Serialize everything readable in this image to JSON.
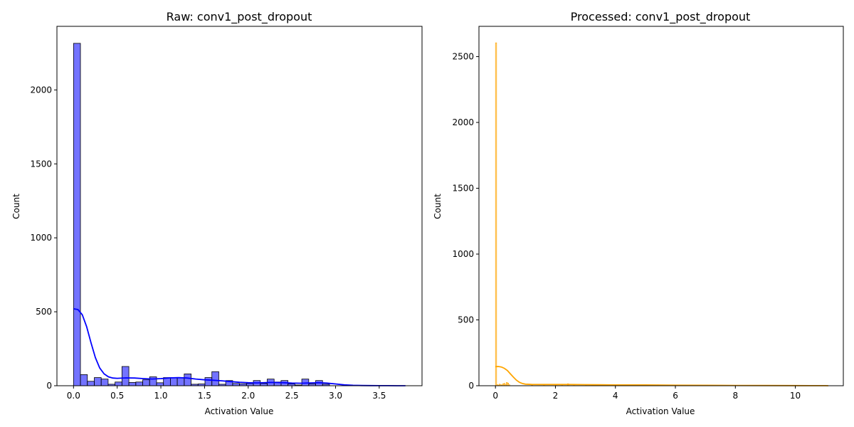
{
  "chart_data": [
    {
      "type": "histogram",
      "title": "Raw: conv1_post_dropout",
      "xlabel": "Activation Value",
      "ylabel": "Count",
      "xlim": [
        -0.19,
        3.99
      ],
      "ylim": [
        0,
        2430
      ],
      "xticks": [
        0.0,
        0.5,
        1.0,
        1.5,
        2.0,
        2.5,
        3.0,
        3.5
      ],
      "xtick_labels": [
        "0.0",
        "0.5",
        "1.0",
        "1.5",
        "2.0",
        "2.5",
        "3.0",
        "3.5"
      ],
      "yticks": [
        0,
        500,
        1000,
        1500,
        2000
      ],
      "ytick_labels": [
        "0",
        "500",
        "1000",
        "1500",
        "2000"
      ],
      "bin_start": 0.0,
      "bin_width": 0.0792,
      "counts": [
        2315,
        75,
        30,
        55,
        45,
        10,
        25,
        130,
        22,
        25,
        40,
        60,
        20,
        55,
        55,
        55,
        80,
        10,
        12,
        55,
        95,
        10,
        35,
        15,
        12,
        15,
        35,
        15,
        45,
        25,
        35,
        12,
        5,
        45,
        12,
        35,
        10
      ],
      "bar_color": "#0000ff",
      "kde": {
        "color": "#0000ff",
        "points": [
          [
            0.0,
            520
          ],
          [
            0.05,
            515
          ],
          [
            0.1,
            480
          ],
          [
            0.15,
            400
          ],
          [
            0.2,
            290
          ],
          [
            0.25,
            190
          ],
          [
            0.3,
            120
          ],
          [
            0.35,
            80
          ],
          [
            0.4,
            60
          ],
          [
            0.45,
            52
          ],
          [
            0.5,
            50
          ],
          [
            0.6,
            53
          ],
          [
            0.7,
            52
          ],
          [
            0.8,
            48
          ],
          [
            0.9,
            45
          ],
          [
            1.0,
            48
          ],
          [
            1.1,
            53
          ],
          [
            1.2,
            55
          ],
          [
            1.3,
            52
          ],
          [
            1.4,
            45
          ],
          [
            1.5,
            40
          ],
          [
            1.6,
            37
          ],
          [
            1.7,
            33
          ],
          [
            1.8,
            28
          ],
          [
            1.9,
            23
          ],
          [
            2.0,
            20
          ],
          [
            2.1,
            19
          ],
          [
            2.2,
            21
          ],
          [
            2.3,
            22
          ],
          [
            2.4,
            20
          ],
          [
            2.5,
            18
          ],
          [
            2.6,
            17
          ],
          [
            2.7,
            19
          ],
          [
            2.8,
            20
          ],
          [
            2.9,
            18
          ],
          [
            3.0,
            12
          ],
          [
            3.1,
            6
          ],
          [
            3.2,
            3
          ],
          [
            3.3,
            1.5
          ],
          [
            3.4,
            1
          ],
          [
            3.5,
            0.5
          ],
          [
            3.6,
            0.3
          ],
          [
            3.7,
            0.2
          ],
          [
            3.8,
            0.1
          ]
        ]
      }
    },
    {
      "type": "histogram",
      "title": "Processed: conv1_post_dropout",
      "xlabel": "Activation Value",
      "ylabel": "Count",
      "xlim": [
        -0.55,
        11.6
      ],
      "ylim": [
        0,
        2730
      ],
      "xticks": [
        0,
        2,
        4,
        6,
        8,
        10
      ],
      "xtick_labels": [
        "0",
        "2",
        "4",
        "6",
        "8",
        "10"
      ],
      "yticks": [
        0,
        500,
        1000,
        1500,
        2000,
        2500
      ],
      "ytick_labels": [
        "0",
        "500",
        "1000",
        "1500",
        "2000",
        "2500"
      ],
      "bin_start": 0.0,
      "bin_width": 0.04,
      "counts_note_free": true,
      "counts": [
        2605,
        8,
        5,
        12,
        8,
        6,
        15,
        18,
        10,
        25,
        20,
        8
      ],
      "tail_bins": [
        [
          1.2,
          6
        ],
        [
          1.6,
          8
        ],
        [
          2.0,
          7
        ],
        [
          2.2,
          12
        ],
        [
          2.4,
          15
        ],
        [
          2.6,
          8
        ],
        [
          3.0,
          6
        ],
        [
          3.6,
          5
        ],
        [
          4.2,
          4
        ],
        [
          5.0,
          5
        ],
        [
          5.4,
          7
        ],
        [
          6.0,
          3
        ],
        [
          7.0,
          2
        ],
        [
          8.0,
          2
        ],
        [
          8.8,
          3
        ],
        [
          10.0,
          1
        ]
      ],
      "bar_color": "#ffa500",
      "kde": {
        "color": "#ffa500",
        "points": [
          [
            0.0,
            145
          ],
          [
            0.1,
            146
          ],
          [
            0.2,
            142
          ],
          [
            0.3,
            132
          ],
          [
            0.4,
            115
          ],
          [
            0.5,
            90
          ],
          [
            0.6,
            65
          ],
          [
            0.7,
            42
          ],
          [
            0.8,
            26
          ],
          [
            0.9,
            17
          ],
          [
            1.0,
            12
          ],
          [
            1.2,
            10
          ],
          [
            1.5,
            9
          ],
          [
            2.0,
            9
          ],
          [
            2.5,
            9
          ],
          [
            3.0,
            8
          ],
          [
            3.5,
            7
          ],
          [
            4.0,
            6
          ],
          [
            5.0,
            6
          ],
          [
            6.0,
            4
          ],
          [
            7.0,
            3
          ],
          [
            8.0,
            2
          ],
          [
            9.0,
            1.5
          ],
          [
            10.0,
            1
          ],
          [
            10.5,
            0.5
          ],
          [
            11.0,
            0.3
          ],
          [
            11.1,
            0.2
          ]
        ]
      }
    }
  ]
}
